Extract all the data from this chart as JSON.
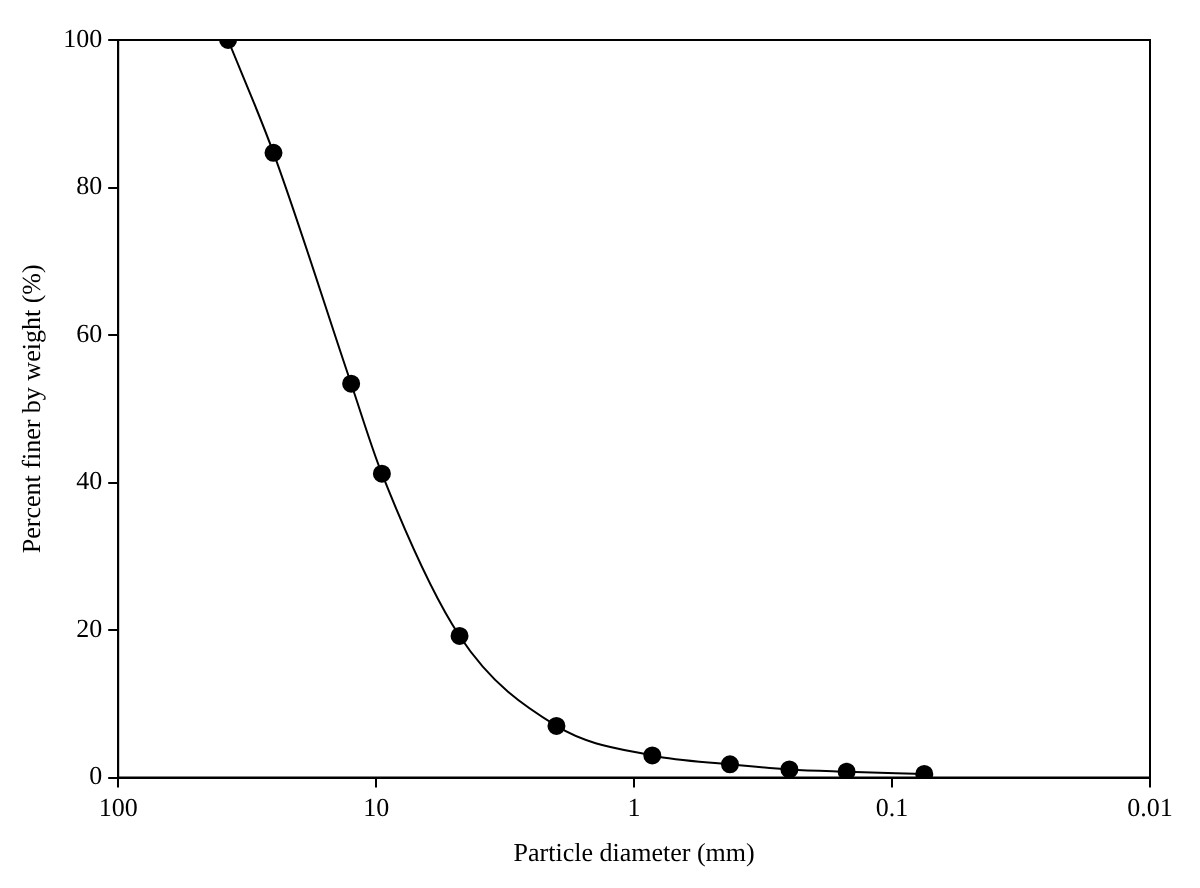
{
  "chart_data": {
    "type": "line",
    "xlabel": "Particle diameter (mm)",
    "ylabel": "Percent finer by weight (%)",
    "series": [
      {
        "color": "#000000",
        "x": [
          37.5,
          25,
          12.5,
          9.5,
          4.75,
          2,
          0.85,
          0.425,
          0.25,
          0.15,
          0.075
        ],
        "values": [
          100,
          84.7,
          53.4,
          41.2,
          19.2,
          7.0,
          3.0,
          1.8,
          1.1,
          0.8,
          0.5
        ]
      }
    ],
    "log": "x",
    "xlim": [
      100,
      0.01
    ],
    "xticks": [
      100,
      10,
      1,
      0.1,
      0.01
    ],
    "ylim": [
      0,
      100
    ],
    "yticks": [
      0,
      20,
      40,
      60,
      80,
      100
    ],
    "grid": false,
    "legend": false,
    "marker": "circle",
    "line_style": "solid"
  }
}
